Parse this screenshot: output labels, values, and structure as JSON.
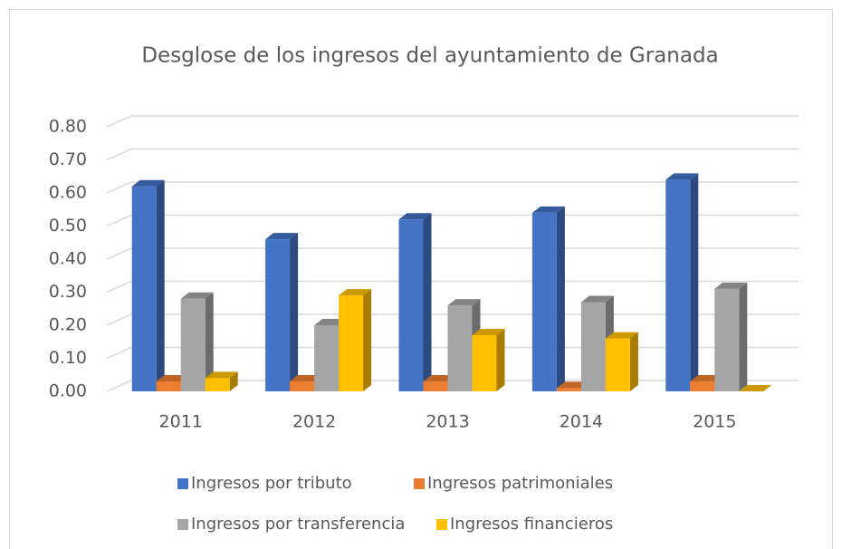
{
  "chart_data": {
    "type": "bar3d",
    "title": "Desglose de los ingresos del ayuntamiento de Granada",
    "categories": [
      "2011",
      "2012",
      "2013",
      "2014",
      "2015"
    ],
    "series": [
      {
        "name": "Ingresos por tributo",
        "color": "#4472c4",
        "values": [
          0.62,
          0.46,
          0.52,
          0.54,
          0.64
        ]
      },
      {
        "name": "Ingresos patrimoniales",
        "color": "#ed7d31",
        "values": [
          0.03,
          0.03,
          0.03,
          0.01,
          0.03
        ]
      },
      {
        "name": "Ingresos por transferencia",
        "color": "#a5a5a5",
        "values": [
          0.28,
          0.2,
          0.26,
          0.27,
          0.31
        ]
      },
      {
        "name": "Ingresos financieros",
        "color": "#ffc000",
        "values": [
          0.04,
          0.29,
          0.17,
          0.16,
          0
        ]
      }
    ],
    "ylim": [
      0,
      0.8
    ],
    "yticks": [
      {
        "value": 0,
        "label": "0.00"
      },
      {
        "value": 0.1,
        "label": "0.10"
      },
      {
        "value": 0.2,
        "label": "0.20"
      },
      {
        "value": 0.3,
        "label": "0.30"
      },
      {
        "value": 0.4,
        "label": "0.40"
      },
      {
        "value": 0.5,
        "label": "0.50"
      },
      {
        "value": 0.6,
        "label": "0.60"
      },
      {
        "value": 0.7,
        "label": "0.70"
      },
      {
        "value": 0.8,
        "label": "0.80"
      }
    ],
    "grid": true,
    "legend": "bottom"
  }
}
